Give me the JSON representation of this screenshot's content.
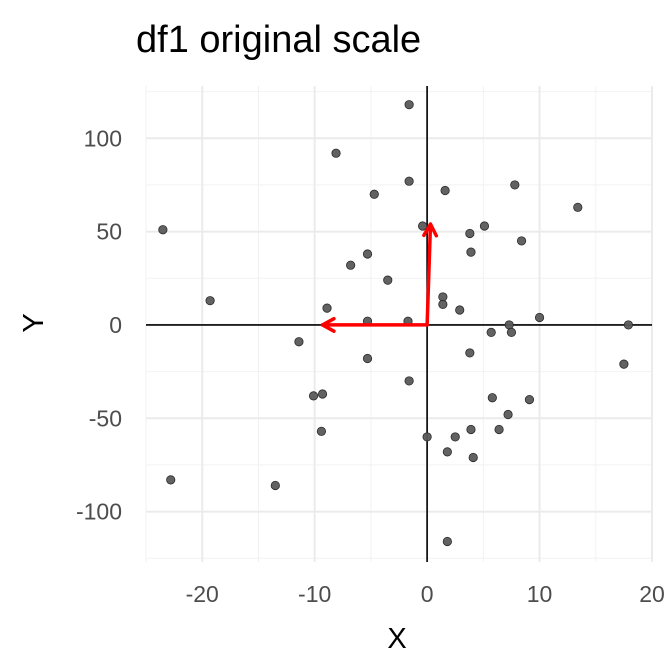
{
  "chart_data": {
    "type": "scatter",
    "title": "df1 original scale",
    "xlabel": "X",
    "ylabel": "Y",
    "xlim": [
      -25,
      20
    ],
    "ylim": [
      -127,
      128
    ],
    "xticks": [
      -20,
      -10,
      0,
      10,
      20
    ],
    "xtick_labels": [
      "-20",
      "-10",
      "0",
      "10",
      "20"
    ],
    "yticks": [
      -100,
      -50,
      0,
      50,
      100
    ],
    "ytick_labels": [
      "-100",
      "-50",
      "0",
      "50",
      "100"
    ],
    "grid": true,
    "point_color": "#5a5a5a",
    "arrow_color": "#ff0000",
    "points": [
      {
        "x": -1.6,
        "y": 118
      },
      {
        "x": -8.1,
        "y": 92
      },
      {
        "x": -1.6,
        "y": 77
      },
      {
        "x": -4.7,
        "y": 70
      },
      {
        "x": 1.6,
        "y": 72
      },
      {
        "x": 7.8,
        "y": 75
      },
      {
        "x": 13.4,
        "y": 63
      },
      {
        "x": -23.5,
        "y": 51
      },
      {
        "x": -0.4,
        "y": 53
      },
      {
        "x": 5.1,
        "y": 53
      },
      {
        "x": 3.8,
        "y": 49
      },
      {
        "x": 8.4,
        "y": 45
      },
      {
        "x": 3.9,
        "y": 39
      },
      {
        "x": -5.3,
        "y": 38
      },
      {
        "x": -6.8,
        "y": 32
      },
      {
        "x": -3.5,
        "y": 24
      },
      {
        "x": -19.3,
        "y": 13
      },
      {
        "x": -8.9,
        "y": 9
      },
      {
        "x": 1.4,
        "y": 15
      },
      {
        "x": 1.4,
        "y": 11
      },
      {
        "x": 2.9,
        "y": 8
      },
      {
        "x": -5.3,
        "y": 2
      },
      {
        "x": -1.7,
        "y": 2
      },
      {
        "x": 10.0,
        "y": 4
      },
      {
        "x": 7.3,
        "y": 0
      },
      {
        "x": 17.9,
        "y": 0
      },
      {
        "x": 5.7,
        "y": -4
      },
      {
        "x": 7.5,
        "y": -4
      },
      {
        "x": -11.4,
        "y": -9
      },
      {
        "x": 3.8,
        "y": -15
      },
      {
        "x": -5.3,
        "y": -18
      },
      {
        "x": 17.5,
        "y": -21
      },
      {
        "x": -1.6,
        "y": -30
      },
      {
        "x": -10.1,
        "y": -38
      },
      {
        "x": -9.3,
        "y": -37
      },
      {
        "x": 5.8,
        "y": -39
      },
      {
        "x": 9.1,
        "y": -40
      },
      {
        "x": 7.2,
        "y": -48
      },
      {
        "x": -9.4,
        "y": -57
      },
      {
        "x": 3.9,
        "y": -56
      },
      {
        "x": 6.4,
        "y": -56
      },
      {
        "x": 0.0,
        "y": -60
      },
      {
        "x": 2.5,
        "y": -60
      },
      {
        "x": 1.8,
        "y": -68
      },
      {
        "x": 4.1,
        "y": -71
      },
      {
        "x": -22.8,
        "y": -83
      },
      {
        "x": -13.5,
        "y": -86
      },
      {
        "x": 1.8,
        "y": -116
      }
    ],
    "arrows": [
      {
        "from": [
          0,
          0
        ],
        "to": [
          0.3,
          54
        ]
      },
      {
        "from": [
          0,
          0
        ],
        "to": [
          -9.3,
          0
        ]
      }
    ]
  }
}
